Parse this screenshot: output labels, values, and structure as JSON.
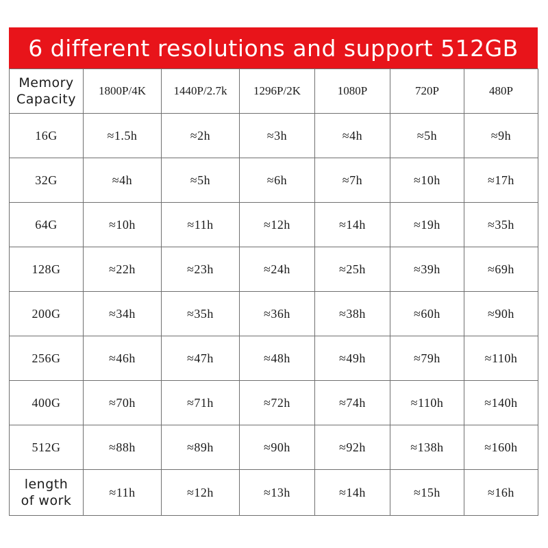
{
  "banner": {
    "title": "6 different resolutions and support 512GB"
  },
  "table": {
    "corner_label_line1": "Memory",
    "corner_label_line2": "Capacity",
    "resolutions": [
      "1800P/4K",
      "1440P/2.7k",
      "1296P/2K",
      "1080P",
      "720P",
      "480P"
    ],
    "rows": [
      {
        "capacity": "16G",
        "values": [
          "≈1.5h",
          "≈2h",
          "≈3h",
          "≈4h",
          "≈5h",
          "≈9h"
        ]
      },
      {
        "capacity": "32G",
        "values": [
          "≈4h",
          "≈5h",
          "≈6h",
          "≈7h",
          "≈10h",
          "≈17h"
        ]
      },
      {
        "capacity": "64G",
        "values": [
          "≈10h",
          "≈11h",
          "≈12h",
          "≈14h",
          "≈19h",
          "≈35h"
        ]
      },
      {
        "capacity": "128G",
        "values": [
          "≈22h",
          "≈23h",
          "≈24h",
          "≈25h",
          "≈39h",
          "≈69h"
        ]
      },
      {
        "capacity": "200G",
        "values": [
          "≈34h",
          "≈35h",
          "≈36h",
          "≈38h",
          "≈60h",
          "≈90h"
        ]
      },
      {
        "capacity": "256G",
        "values": [
          "≈46h",
          "≈47h",
          "≈48h",
          "≈49h",
          "≈79h",
          "≈110h"
        ]
      },
      {
        "capacity": "400G",
        "values": [
          "≈70h",
          "≈71h",
          "≈72h",
          "≈74h",
          "≈110h",
          "≈140h"
        ]
      },
      {
        "capacity": "512G",
        "values": [
          "≈88h",
          "≈89h",
          "≈90h",
          "≈92h",
          "≈138h",
          "≈160h"
        ]
      }
    ],
    "work_row": {
      "label_line1": "length",
      "label_line2": "of work",
      "values": [
        "≈11h",
        "≈12h",
        "≈13h",
        "≈14h",
        "≈15h",
        "≈16h"
      ]
    }
  },
  "colors": {
    "banner_bg": "#e8141a",
    "banner_text": "#ffffff",
    "grid": "#6f6f6f"
  }
}
